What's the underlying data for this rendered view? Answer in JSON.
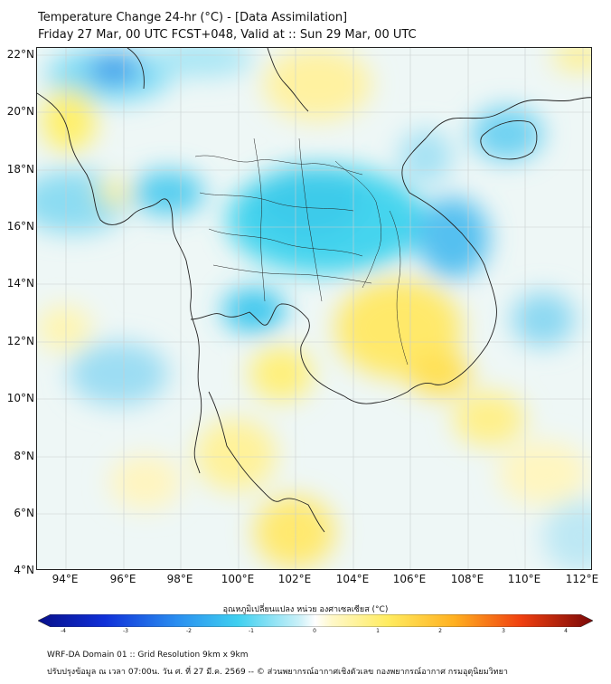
{
  "title_line1": "Temperature Change 24-hr (°C) - [Data Assimilation]",
  "title_line2": "Friday 27 Mar, 00 UTC FCST+048, Valid at :: Sun 29 Mar, 00 UTC",
  "lat_labels": [
    "22°N",
    "20°N",
    "18°N",
    "16°N",
    "14°N",
    "12°N",
    "10°N",
    "8°N",
    "6°N",
    "4°N"
  ],
  "lon_labels": [
    "94°E",
    "96°E",
    "98°E",
    "100°E",
    "102°E",
    "104°E",
    "106°E",
    "108°E",
    "110°E",
    "112°E"
  ],
  "colorbar": {
    "title": "อุณหภูมิเปลี่ยนแปลง หน่วย องศาเซลเซียส (°C)",
    "ticks": [
      "-4",
      "-3",
      "-2",
      "-1",
      "0",
      "1",
      "2",
      "3",
      "4"
    ],
    "range": [
      -4,
      4
    ]
  },
  "footer_line1": "WRF-DA Domain 01 :: Grid Resolution 9km x 9km",
  "footer_line2": "ปรับปรุงข้อมูล ณ เวลา 07:00น. วัน ศ. ที่ 27 มี.ค. 2569 -- © ส่วนพยากรณ์อากาศเชิงตัวเลข กองพยากรณ์อากาศ กรมอุตุนิยมวิทยา",
  "colors": {
    "cold": "#3fd0f0",
    "deep_cold": "#2a9cf0",
    "warm": "#fff27a",
    "neutral": "#f3f9f2"
  }
}
